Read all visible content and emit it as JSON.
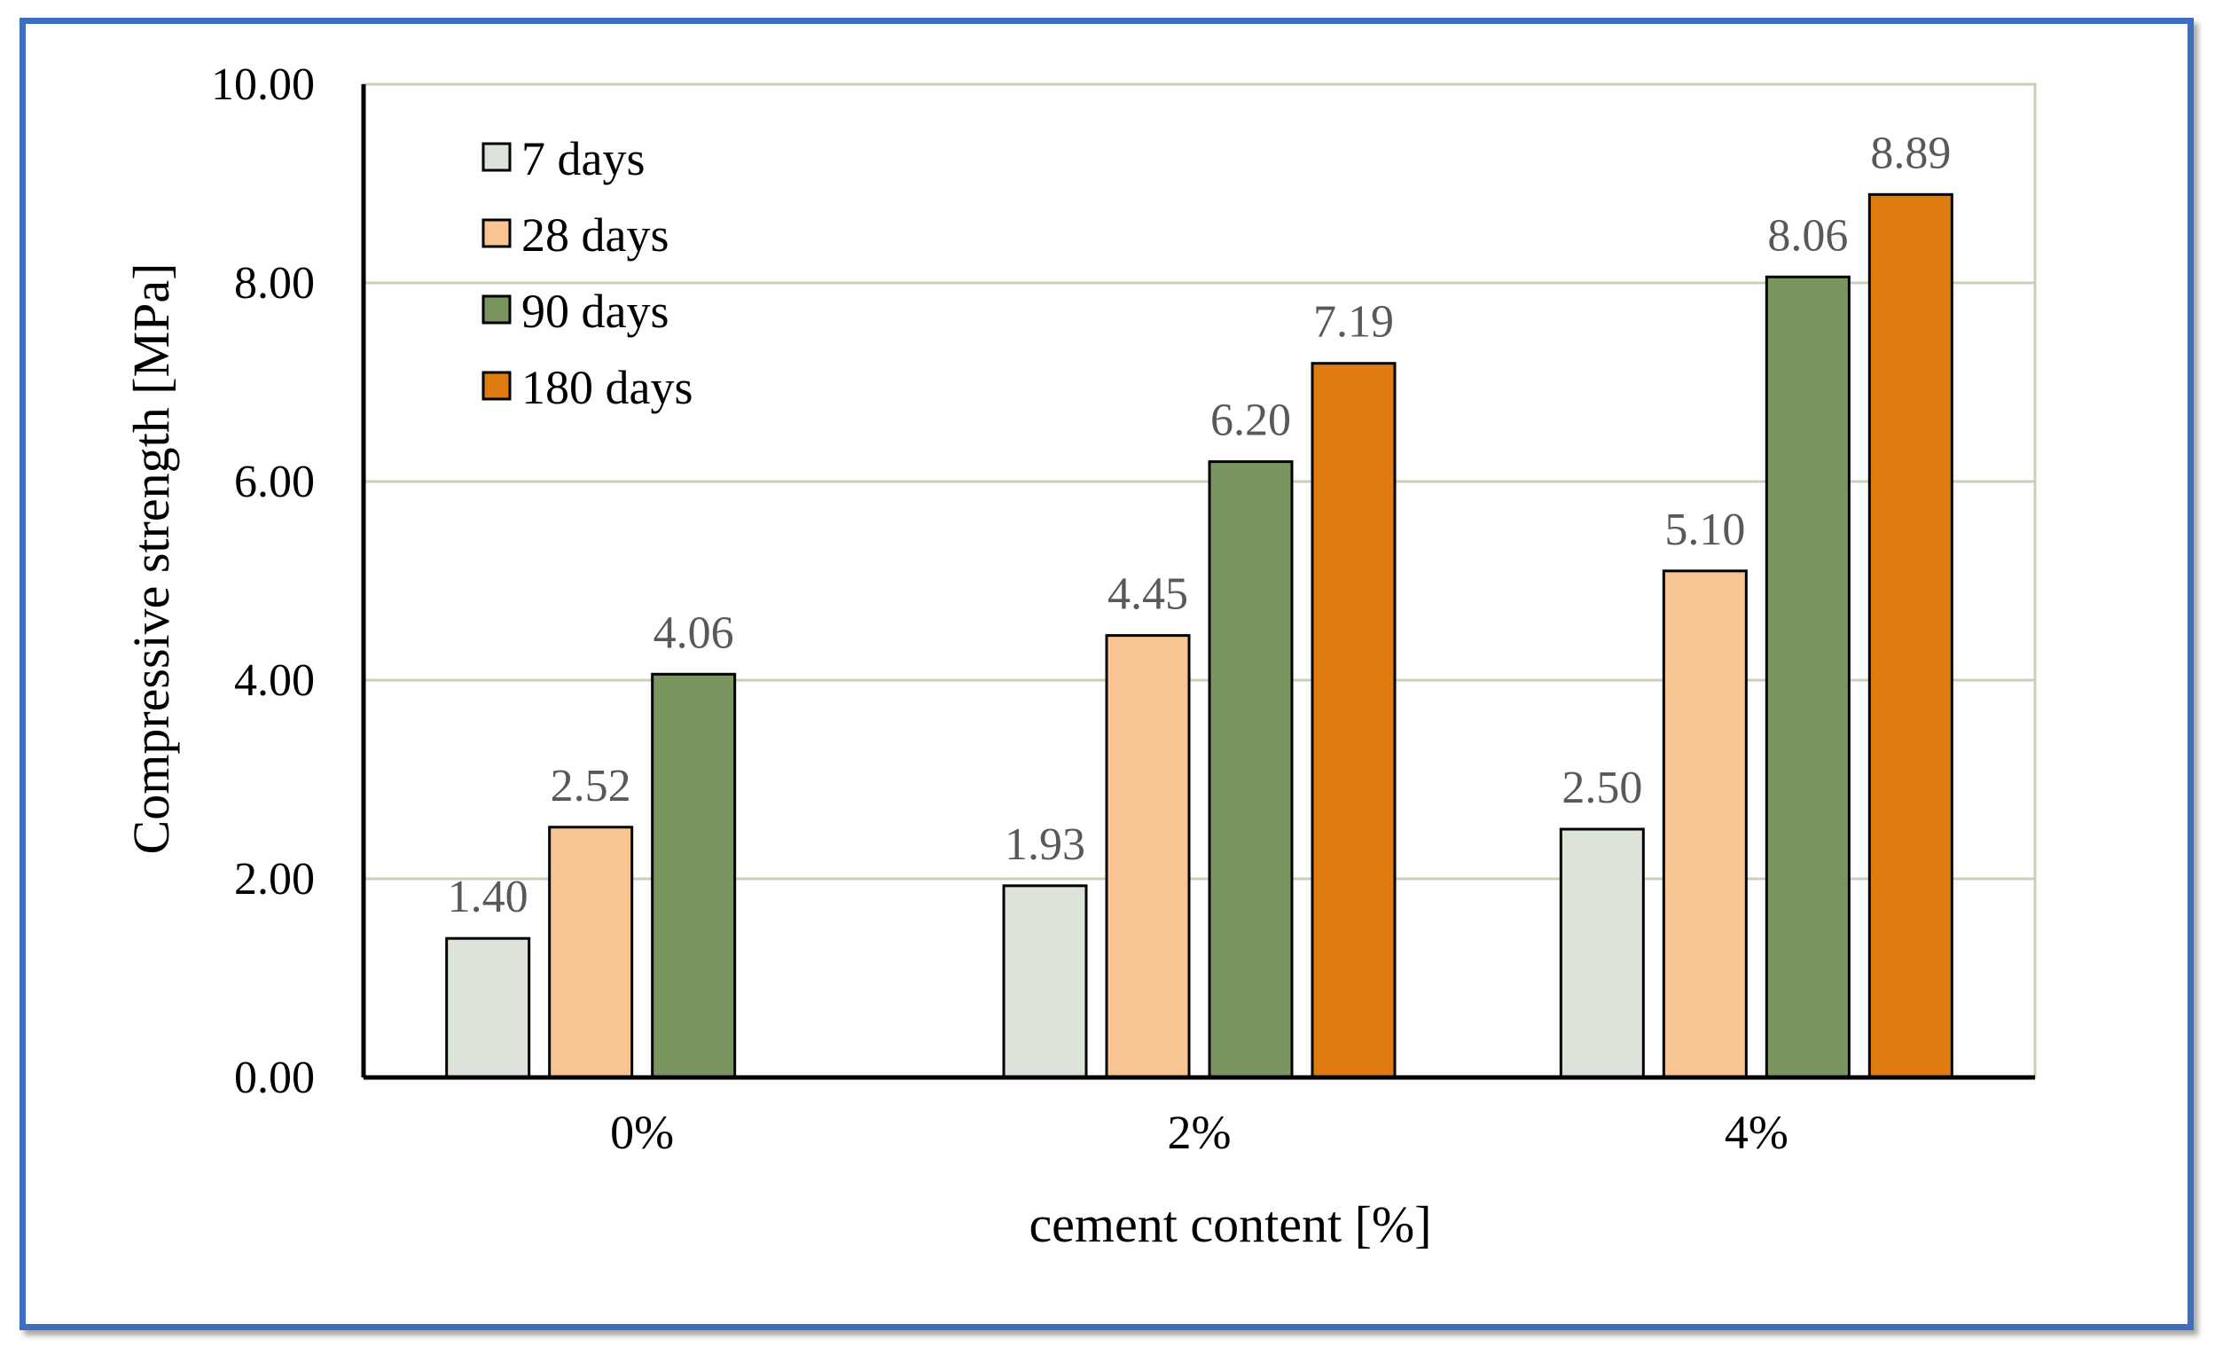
{
  "chart_data": {
    "type": "bar",
    "title": "",
    "xlabel": "cement content [%]",
    "ylabel": "Compressive strength [MPa]",
    "ylim": [
      0,
      10
    ],
    "yticks": [
      "0.00",
      "2.00",
      "4.00",
      "6.00",
      "8.00",
      "10.00"
    ],
    "categories": [
      "0%",
      "2%",
      "4%"
    ],
    "legend_position": "top-left",
    "grid": true,
    "series": [
      {
        "name": "7 days",
        "color": "#dce3d8",
        "values": [
          1.4,
          1.93,
          2.5
        ],
        "labels": [
          "1.40",
          "1.93",
          "2.50"
        ]
      },
      {
        "name": "28 days",
        "color": "#f8c491",
        "values": [
          2.52,
          4.45,
          5.1
        ],
        "labels": [
          "2.52",
          "4.45",
          "5.10"
        ]
      },
      {
        "name": "90 days",
        "color": "#7a9560",
        "values": [
          4.06,
          6.2,
          8.06
        ],
        "labels": [
          "4.06",
          "6.20",
          "8.06"
        ]
      },
      {
        "name": "180 days",
        "color": "#e07b12",
        "values": [
          null,
          7.19,
          8.89
        ],
        "labels": [
          null,
          "7.19",
          "8.89"
        ]
      }
    ]
  }
}
